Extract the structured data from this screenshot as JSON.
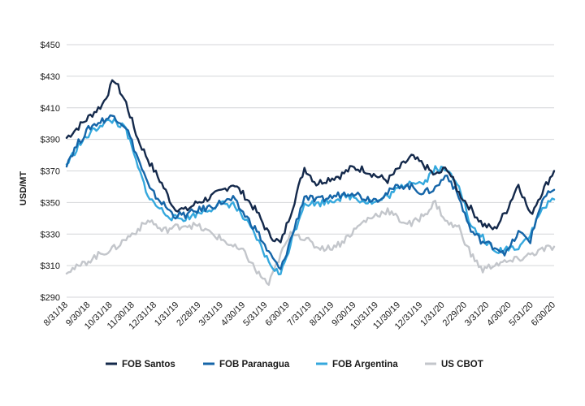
{
  "chart_data": {
    "type": "line",
    "title": "",
    "xlabel": "",
    "ylabel": "USD/MT",
    "ylim": [
      290,
      450
    ],
    "yticks": [
      290,
      310,
      330,
      350,
      370,
      390,
      410,
      430,
      450
    ],
    "ytick_labels": [
      "$290",
      "$310",
      "$330",
      "$350",
      "$370",
      "$390",
      "$410",
      "$430",
      "$450"
    ],
    "grid": "horizontal",
    "legend_position": "bottom",
    "x_tick_labels": [
      "8/31/18",
      "9/30/18",
      "10/31/18",
      "11/30/18",
      "12/31/18",
      "1/31/19",
      "2/28/19",
      "3/31/19",
      "4/30/19",
      "5/31/19",
      "6/30/19",
      "7/31/19",
      "8/31/19",
      "9/30/19",
      "10/31/19",
      "11/30/19",
      "12/31/19",
      "1/31/20",
      "2/29/20",
      "3/31/20",
      "4/30/20",
      "5/31/20",
      "6/30/20"
    ],
    "series": [
      {
        "name": "FOB Santos",
        "color": "#14294b",
        "values": [
          391,
          398,
          405,
          412,
          428,
          413,
          390,
          375,
          362,
          347,
          345,
          350,
          353,
          357,
          362,
          354,
          344,
          330,
          324,
          347,
          372,
          362,
          365,
          367,
          372,
          371,
          367,
          364,
          372,
          379,
          374,
          367,
          372,
          356,
          346,
          336,
          333,
          345,
          362,
          342,
          357,
          370
        ]
      },
      {
        "name": "FOB Paranagua",
        "color": "#1565a8",
        "values": [
          375,
          388,
          398,
          402,
          405,
          398,
          378,
          358,
          350,
          342,
          342,
          345,
          347,
          350,
          352,
          342,
          332,
          318,
          307,
          330,
          354,
          351,
          353,
          355,
          357,
          353,
          352,
          356,
          361,
          360,
          356,
          359,
          368,
          353,
          332,
          325,
          322,
          318,
          331,
          326,
          352,
          358
        ]
      },
      {
        "name": "FOB Argentina",
        "color": "#35a8dd",
        "values": [
          374,
          386,
          394,
          400,
          402,
          396,
          372,
          352,
          345,
          340,
          340,
          343,
          346,
          349,
          349,
          339,
          327,
          312,
          304,
          328,
          350,
          349,
          351,
          353,
          354,
          351,
          350,
          354,
          359,
          364,
          362,
          372,
          370,
          362,
          334,
          328,
          318,
          321,
          322,
          330,
          346,
          352
        ]
      },
      {
        "name": "US CBOT",
        "color": "#c3c6cb",
        "values": [
          307,
          309,
          314,
          318,
          321,
          327,
          333,
          339,
          332,
          334,
          336,
          335,
          331,
          327,
          322,
          318,
          306,
          298,
          317,
          332,
          327,
          322,
          321,
          324,
          331,
          338,
          342,
          345,
          339,
          336,
          342,
          350,
          337,
          334,
          317,
          307,
          311,
          312,
          314,
          317,
          320,
          322
        ]
      }
    ]
  }
}
